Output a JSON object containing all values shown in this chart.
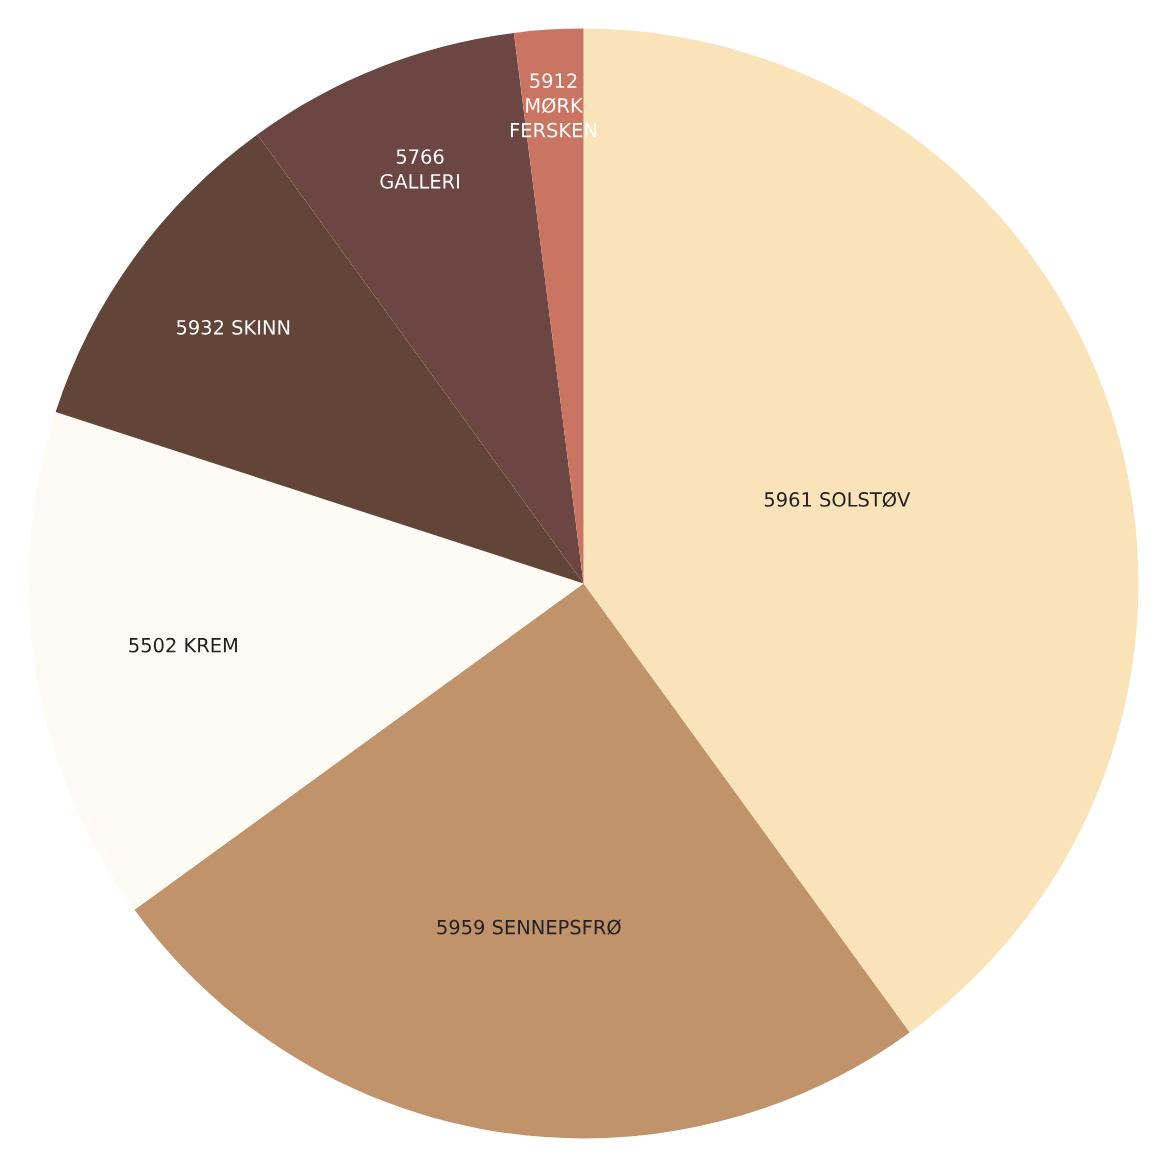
{
  "chart_data": {
    "type": "pie",
    "categories": [
      "5961 SOLSTØV",
      "5959 SENNEPSFRØ",
      "5502 KREM",
      "5932 SKINN",
      "5766\nGALLERI",
      "5912\nMØRK\nFERSKEN"
    ],
    "values": [
      40,
      25,
      15,
      10,
      8,
      2
    ],
    "colors": [
      "#fbe3b9",
      "#c1936b",
      "#fefaf4",
      "#624538",
      "#6b4643",
      "#c97562"
    ]
  }
}
